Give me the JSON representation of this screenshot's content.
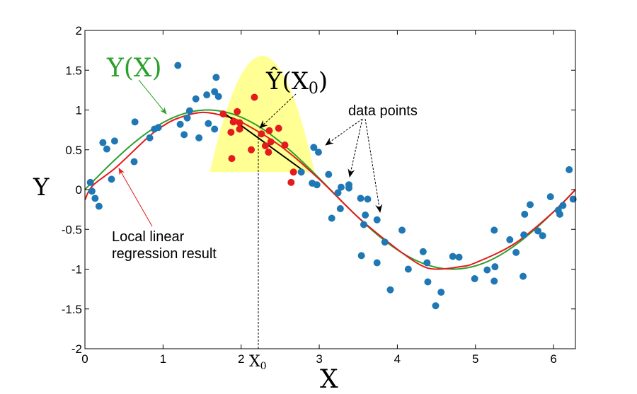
{
  "chart_data": {
    "type": "scatter",
    "xlabel": "X",
    "ylabel": "Y",
    "xlim": [
      0,
      6.28
    ],
    "ylim": [
      -2,
      2
    ],
    "xticks": [
      "0",
      "1",
      "2",
      "3",
      "4",
      "5",
      "6"
    ],
    "yticks": [
      "2",
      "1.5",
      "1",
      "0.5",
      "0",
      "-0.5",
      "-1",
      "-1.5",
      "-2"
    ],
    "grid": false,
    "colors": {
      "data_points": "#1f77b4",
      "kernel_points": "#e41a1c",
      "true_curve": "#2ca02c",
      "regression_curve": "#e41a1c",
      "kernel": "#ffff80"
    },
    "annotations": {
      "true_curve_label": "Y(X)",
      "estimate_label_main": "Ŷ(X",
      "estimate_label_sub": "0",
      "estimate_label_close": ")",
      "data_points_label": "data points",
      "regression_label_line1": "Local linear",
      "regression_label_line2": "regression result",
      "x0_label_main": "X",
      "x0_label_sub": "0"
    },
    "x0": 2.22,
    "kernel": {
      "center": 2.27,
      "half_width": 0.67,
      "base": 0.22,
      "peak": 1.68
    },
    "local_fit_line": [
      [
        1.81,
        0.94
      ],
      [
        2.78,
        0.25
      ]
    ],
    "true_curve": "sin(x)",
    "regression_curve": [
      [
        0,
        -0.13
      ],
      [
        0.1,
        0.05
      ],
      [
        0.4,
        0.28
      ],
      [
        0.8,
        0.65
      ],
      [
        1.0,
        0.8
      ],
      [
        1.2,
        0.9
      ],
      [
        1.5,
        0.97
      ],
      [
        1.8,
        0.92
      ],
      [
        2.0,
        0.85
      ],
      [
        2.5,
        0.55
      ],
      [
        3.0,
        0.13
      ],
      [
        3.5,
        -0.35
      ],
      [
        4.0,
        -0.75
      ],
      [
        4.3,
        -0.95
      ],
      [
        4.5,
        -1.0
      ],
      [
        4.8,
        -0.97
      ],
      [
        5.0,
        -0.92
      ],
      [
        5.5,
        -0.68
      ],
      [
        6.0,
        -0.28
      ],
      [
        6.28,
        0.0
      ]
    ],
    "points": [
      [
        0.07,
        0.09
      ],
      [
        0.09,
        -0.02
      ],
      [
        0.13,
        -0.11
      ],
      [
        0.18,
        -0.21
      ],
      [
        0.23,
        0.59
      ],
      [
        0.28,
        0.51
      ],
      [
        0.34,
        0.13
      ],
      [
        0.38,
        0.61
      ],
      [
        0.63,
        0.35
      ],
      [
        0.64,
        0.85
      ],
      [
        0.83,
        0.65
      ],
      [
        0.89,
        0.76
      ],
      [
        0.94,
        0.78
      ],
      [
        1.19,
        1.56
      ],
      [
        1.22,
        0.82
      ],
      [
        1.27,
        0.69
      ],
      [
        1.31,
        0.9
      ],
      [
        1.34,
        0.99
      ],
      [
        1.42,
        1.14
      ],
      [
        1.46,
        0.65
      ],
      [
        1.56,
        1.19
      ],
      [
        1.58,
        0.83
      ],
      [
        1.66,
        0.76
      ],
      [
        1.66,
        1.23
      ],
      [
        1.68,
        1.41
      ],
      [
        1.71,
        1.17
      ],
      [
        2.77,
        0.22
      ],
      [
        2.93,
        0.53
      ],
      [
        2.99,
        0.47
      ],
      [
        2.91,
        0.08
      ],
      [
        2.97,
        0.06
      ],
      [
        3.12,
        0.19
      ],
      [
        3.16,
        -0.36
      ],
      [
        3.24,
        -0.04
      ],
      [
        3.27,
        -0.24
      ],
      [
        3.28,
        0.03
      ],
      [
        3.38,
        0.06
      ],
      [
        3.38,
        0.02
      ],
      [
        3.53,
        -0.11
      ],
      [
        3.54,
        -0.83
      ],
      [
        3.57,
        -0.44
      ],
      [
        3.59,
        -0.32
      ],
      [
        3.62,
        -0.12
      ],
      [
        3.74,
        -0.92
      ],
      [
        3.74,
        -0.38
      ],
      [
        3.84,
        -0.66
      ],
      [
        3.91,
        -1.26
      ],
      [
        4.06,
        -0.51
      ],
      [
        4.14,
        -1.0
      ],
      [
        4.33,
        -0.78
      ],
      [
        4.38,
        -0.92
      ],
      [
        4.39,
        -1.16
      ],
      [
        4.49,
        -1.46
      ],
      [
        4.56,
        -1.29
      ],
      [
        4.71,
        -0.84
      ],
      [
        4.79,
        -0.85
      ],
      [
        4.99,
        -1.12
      ],
      [
        5.15,
        -1.01
      ],
      [
        5.24,
        -0.51
      ],
      [
        5.24,
        -1.15
      ],
      [
        5.25,
        -0.97
      ],
      [
        5.44,
        -0.63
      ],
      [
        5.52,
        -0.79
      ],
      [
        5.61,
        -1.09
      ],
      [
        5.62,
        -0.57
      ],
      [
        5.63,
        -0.31
      ],
      [
        5.7,
        -0.19
      ],
      [
        5.8,
        -0.52
      ],
      [
        5.86,
        -0.58
      ],
      [
        5.96,
        -0.09
      ],
      [
        6.06,
        -0.26
      ],
      [
        6.08,
        -0.31
      ],
      [
        6.12,
        -0.2
      ],
      [
        6.2,
        0.25
      ],
      [
        6.25,
        -0.12
      ]
    ],
    "kernel_points": [
      [
        1.77,
        0.95
      ],
      [
        1.95,
        0.98
      ],
      [
        1.9,
        0.85
      ],
      [
        1.98,
        0.84
      ],
      [
        1.98,
        0.76
      ],
      [
        1.87,
        0.72
      ],
      [
        2.17,
        1.16
      ],
      [
        2.26,
        0.7
      ],
      [
        2.36,
        0.74
      ],
      [
        2.48,
        0.77
      ],
      [
        2.38,
        0.6
      ],
      [
        2.31,
        0.55
      ],
      [
        2.35,
        0.47
      ],
      [
        2.13,
        0.5
      ],
      [
        2.56,
        0.56
      ],
      [
        1.88,
        0.39
      ],
      [
        2.67,
        0.22
      ],
      [
        2.64,
        0.09
      ]
    ]
  }
}
